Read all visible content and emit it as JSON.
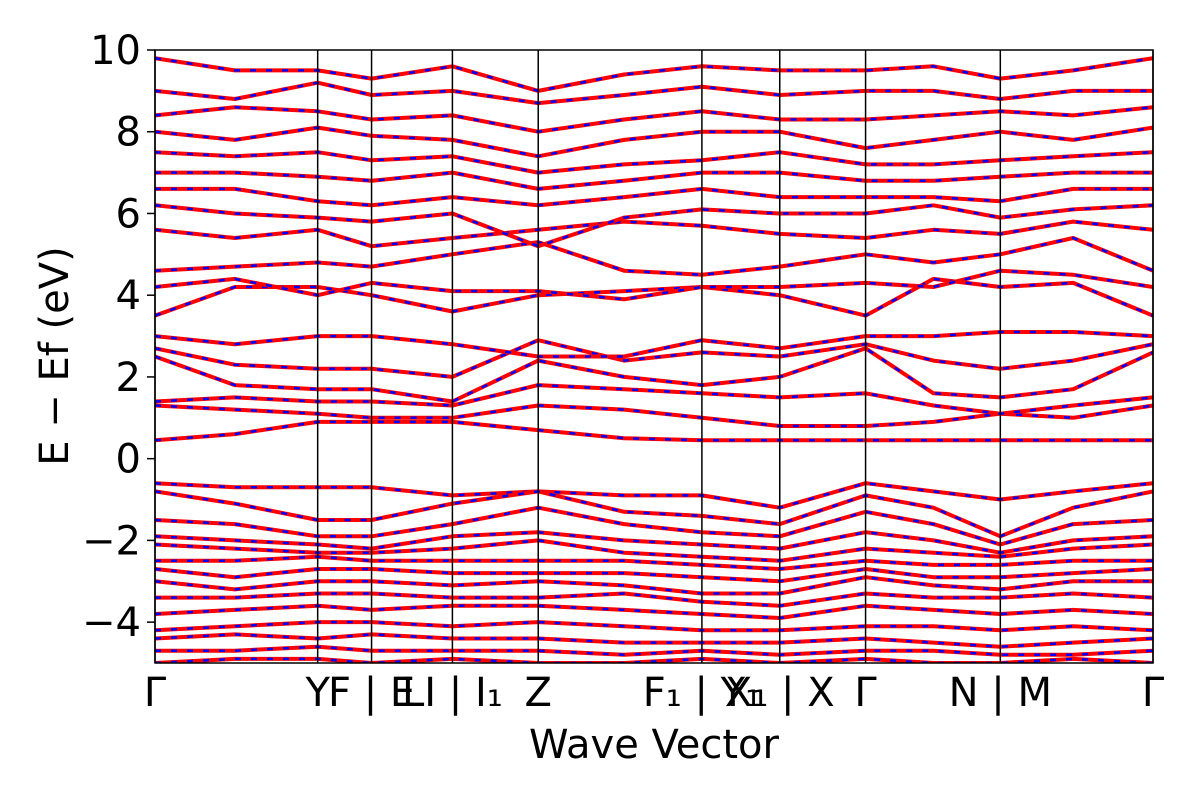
{
  "chart_data": {
    "type": "band-structure",
    "xlabel": "Wave Vector",
    "ylabel": "E − Ef (eV)",
    "line_color": "#ff0000",
    "dash_color": "#0000ff",
    "x": [
      0,
      0.08,
      0.163,
      0.217,
      0.298,
      0.384,
      0.47,
      0.548,
      0.626,
      0.712,
      0.78,
      0.847,
      0.92,
      1
    ],
    "xlim": [
      0,
      1
    ],
    "xticks": [
      {
        "value": 0,
        "label": "Γ"
      },
      {
        "value": 0.163,
        "label": "Y"
      },
      {
        "value": 0.217,
        "label": "F | E"
      },
      {
        "value": 0.298,
        "label": "LI | I₁"
      },
      {
        "value": 0.384,
        "label": "Z"
      },
      {
        "value": 0.548,
        "label": "F₁ | Y₁"
      },
      {
        "value": 0.626,
        "label": "X₁ | X"
      },
      {
        "value": 0.712,
        "label": "Γ"
      },
      {
        "value": 0.847,
        "label": "N | M"
      },
      {
        "value": 1,
        "label": "Γ"
      }
    ],
    "ylim": [
      -5,
      10
    ],
    "yticks": [
      {
        "value": -4,
        "label": "−4"
      },
      {
        "value": -2,
        "label": "−2"
      },
      0,
      2,
      4,
      6,
      8,
      10
    ],
    "kpath_lines": true,
    "series": [
      {
        "values": [
          0.45,
          0.6,
          0.9,
          0.9,
          0.9,
          0.7,
          0.5,
          0.45,
          0.45,
          0.45,
          0.45,
          0.45,
          0.45,
          0.45
        ]
      },
      {
        "values": [
          1.3,
          1.2,
          1.1,
          1.0,
          1.0,
          1.3,
          1.2,
          1.0,
          0.8,
          0.8,
          0.9,
          1.1,
          1.0,
          1.3
        ]
      },
      {
        "values": [
          1.4,
          1.5,
          1.4,
          1.4,
          1.3,
          1.8,
          1.7,
          1.6,
          1.5,
          1.6,
          1.3,
          1.1,
          1.3,
          1.5
        ]
      },
      {
        "values": [
          2.5,
          1.8,
          1.7,
          1.7,
          1.4,
          2.4,
          2.0,
          1.8,
          2.0,
          2.7,
          1.6,
          1.5,
          1.7,
          2.6
        ]
      },
      {
        "values": [
          2.7,
          2.3,
          2.2,
          2.2,
          2.0,
          2.9,
          2.4,
          2.6,
          2.5,
          2.8,
          2.4,
          2.2,
          2.4,
          2.8
        ]
      },
      {
        "values": [
          3.0,
          2.8,
          3.0,
          3.0,
          2.8,
          2.5,
          2.5,
          2.9,
          2.7,
          3.0,
          3.0,
          3.1,
          3.1,
          3.0
        ]
      },
      {
        "values": [
          3.5,
          4.2,
          4.2,
          4.0,
          3.6,
          4.0,
          4.1,
          4.2,
          4.0,
          3.5,
          4.4,
          4.2,
          4.3,
          3.5
        ]
      },
      {
        "values": [
          4.2,
          4.4,
          4.0,
          4.3,
          4.1,
          4.1,
          3.9,
          4.2,
          4.2,
          4.3,
          4.2,
          4.6,
          4.5,
          4.2
        ]
      },
      {
        "values": [
          4.6,
          4.7,
          4.8,
          4.7,
          5.0,
          5.3,
          4.6,
          4.5,
          4.7,
          5.0,
          4.8,
          5.0,
          5.4,
          4.6
        ]
      },
      {
        "values": [
          5.6,
          5.4,
          5.6,
          5.2,
          5.4,
          5.6,
          5.8,
          5.7,
          5.5,
          5.4,
          5.6,
          5.5,
          5.8,
          5.6
        ]
      },
      {
        "values": [
          6.2,
          6.0,
          5.9,
          5.8,
          6.0,
          5.2,
          5.9,
          6.1,
          6.0,
          6.0,
          6.2,
          5.9,
          6.1,
          6.2
        ]
      },
      {
        "values": [
          6.6,
          6.6,
          6.3,
          6.2,
          6.4,
          6.2,
          6.4,
          6.6,
          6.4,
          6.4,
          6.4,
          6.3,
          6.6,
          6.6
        ]
      },
      {
        "values": [
          7.0,
          7.0,
          6.9,
          6.8,
          7.0,
          6.6,
          6.8,
          7.0,
          7.0,
          6.8,
          6.8,
          6.9,
          7.0,
          7.0
        ]
      },
      {
        "values": [
          7.5,
          7.4,
          7.5,
          7.3,
          7.4,
          7.0,
          7.2,
          7.3,
          7.5,
          7.2,
          7.2,
          7.3,
          7.4,
          7.5
        ]
      },
      {
        "values": [
          8.0,
          7.8,
          8.1,
          7.9,
          7.8,
          7.4,
          7.8,
          8.0,
          8.0,
          7.6,
          7.8,
          8.0,
          7.8,
          8.1
        ]
      },
      {
        "values": [
          8.4,
          8.6,
          8.5,
          8.3,
          8.4,
          8.0,
          8.3,
          8.5,
          8.3,
          8.3,
          8.4,
          8.5,
          8.4,
          8.6
        ]
      },
      {
        "values": [
          9.0,
          8.8,
          9.2,
          8.9,
          9.0,
          8.7,
          8.9,
          9.1,
          8.9,
          9.0,
          9.0,
          8.8,
          9.0,
          9.0
        ]
      },
      {
        "values": [
          9.8,
          9.5,
          9.5,
          9.3,
          9.6,
          9.0,
          9.4,
          9.6,
          9.5,
          9.5,
          9.6,
          9.3,
          9.5,
          9.8
        ]
      },
      {
        "values": [
          -0.6,
          -0.7,
          -0.7,
          -0.7,
          -0.9,
          -0.8,
          -0.9,
          -0.9,
          -1.2,
          -0.6,
          -0.8,
          -1.0,
          -0.8,
          -0.6
        ]
      },
      {
        "values": [
          -0.8,
          -1.1,
          -1.5,
          -1.5,
          -1.1,
          -0.8,
          -1.3,
          -1.4,
          -1.6,
          -0.9,
          -1.2,
          -1.9,
          -1.2,
          -0.8
        ]
      },
      {
        "values": [
          -1.5,
          -1.6,
          -1.9,
          -1.9,
          -1.6,
          -1.2,
          -1.6,
          -1.8,
          -1.9,
          -1.3,
          -1.6,
          -2.1,
          -1.6,
          -1.5
        ]
      },
      {
        "values": [
          -1.9,
          -2.0,
          -2.1,
          -2.2,
          -1.9,
          -1.8,
          -2.0,
          -2.1,
          -2.2,
          -1.8,
          -2.0,
          -2.3,
          -2.0,
          -1.9
        ]
      },
      {
        "values": [
          -2.1,
          -2.2,
          -2.3,
          -2.3,
          -2.2,
          -2.0,
          -2.3,
          -2.4,
          -2.5,
          -2.2,
          -2.3,
          -2.4,
          -2.2,
          -2.1
        ]
      },
      {
        "values": [
          -2.5,
          -2.5,
          -2.4,
          -2.5,
          -2.5,
          -2.5,
          -2.5,
          -2.6,
          -2.7,
          -2.5,
          -2.6,
          -2.6,
          -2.5,
          -2.5
        ]
      },
      {
        "values": [
          -2.7,
          -2.9,
          -2.7,
          -2.7,
          -2.8,
          -2.8,
          -2.8,
          -2.9,
          -3.0,
          -2.7,
          -2.9,
          -2.9,
          -2.8,
          -2.7
        ]
      },
      {
        "values": [
          -3.0,
          -3.2,
          -3.0,
          -3.0,
          -3.1,
          -3.0,
          -3.1,
          -3.3,
          -3.3,
          -2.9,
          -3.1,
          -3.2,
          -3.0,
          -3.0
        ]
      },
      {
        "values": [
          -3.4,
          -3.4,
          -3.3,
          -3.3,
          -3.4,
          -3.4,
          -3.3,
          -3.5,
          -3.6,
          -3.3,
          -3.4,
          -3.4,
          -3.3,
          -3.4
        ]
      },
      {
        "values": [
          -3.8,
          -3.7,
          -3.6,
          -3.7,
          -3.6,
          -3.6,
          -3.7,
          -3.8,
          -3.9,
          -3.6,
          -3.7,
          -3.8,
          -3.7,
          -3.8
        ]
      },
      {
        "values": [
          -4.2,
          -4.1,
          -4.0,
          -4.0,
          -4.1,
          -4.0,
          -4.1,
          -4.2,
          -4.2,
          -4.1,
          -4.1,
          -4.2,
          -4.1,
          -4.2
        ]
      },
      {
        "values": [
          -4.4,
          -4.3,
          -4.4,
          -4.3,
          -4.4,
          -4.4,
          -4.5,
          -4.5,
          -4.5,
          -4.4,
          -4.5,
          -4.6,
          -4.5,
          -4.4
        ]
      },
      {
        "values": [
          -4.7,
          -4.7,
          -4.6,
          -4.7,
          -4.7,
          -4.7,
          -4.8,
          -4.7,
          -4.8,
          -4.7,
          -4.7,
          -4.8,
          -4.8,
          -4.7
        ]
      },
      {
        "values": [
          -5.0,
          -4.9,
          -4.9,
          -5.0,
          -4.9,
          -5.0,
          -5.0,
          -4.9,
          -5.0,
          -4.9,
          -5.0,
          -5.0,
          -4.9,
          -5.0
        ]
      }
    ]
  }
}
